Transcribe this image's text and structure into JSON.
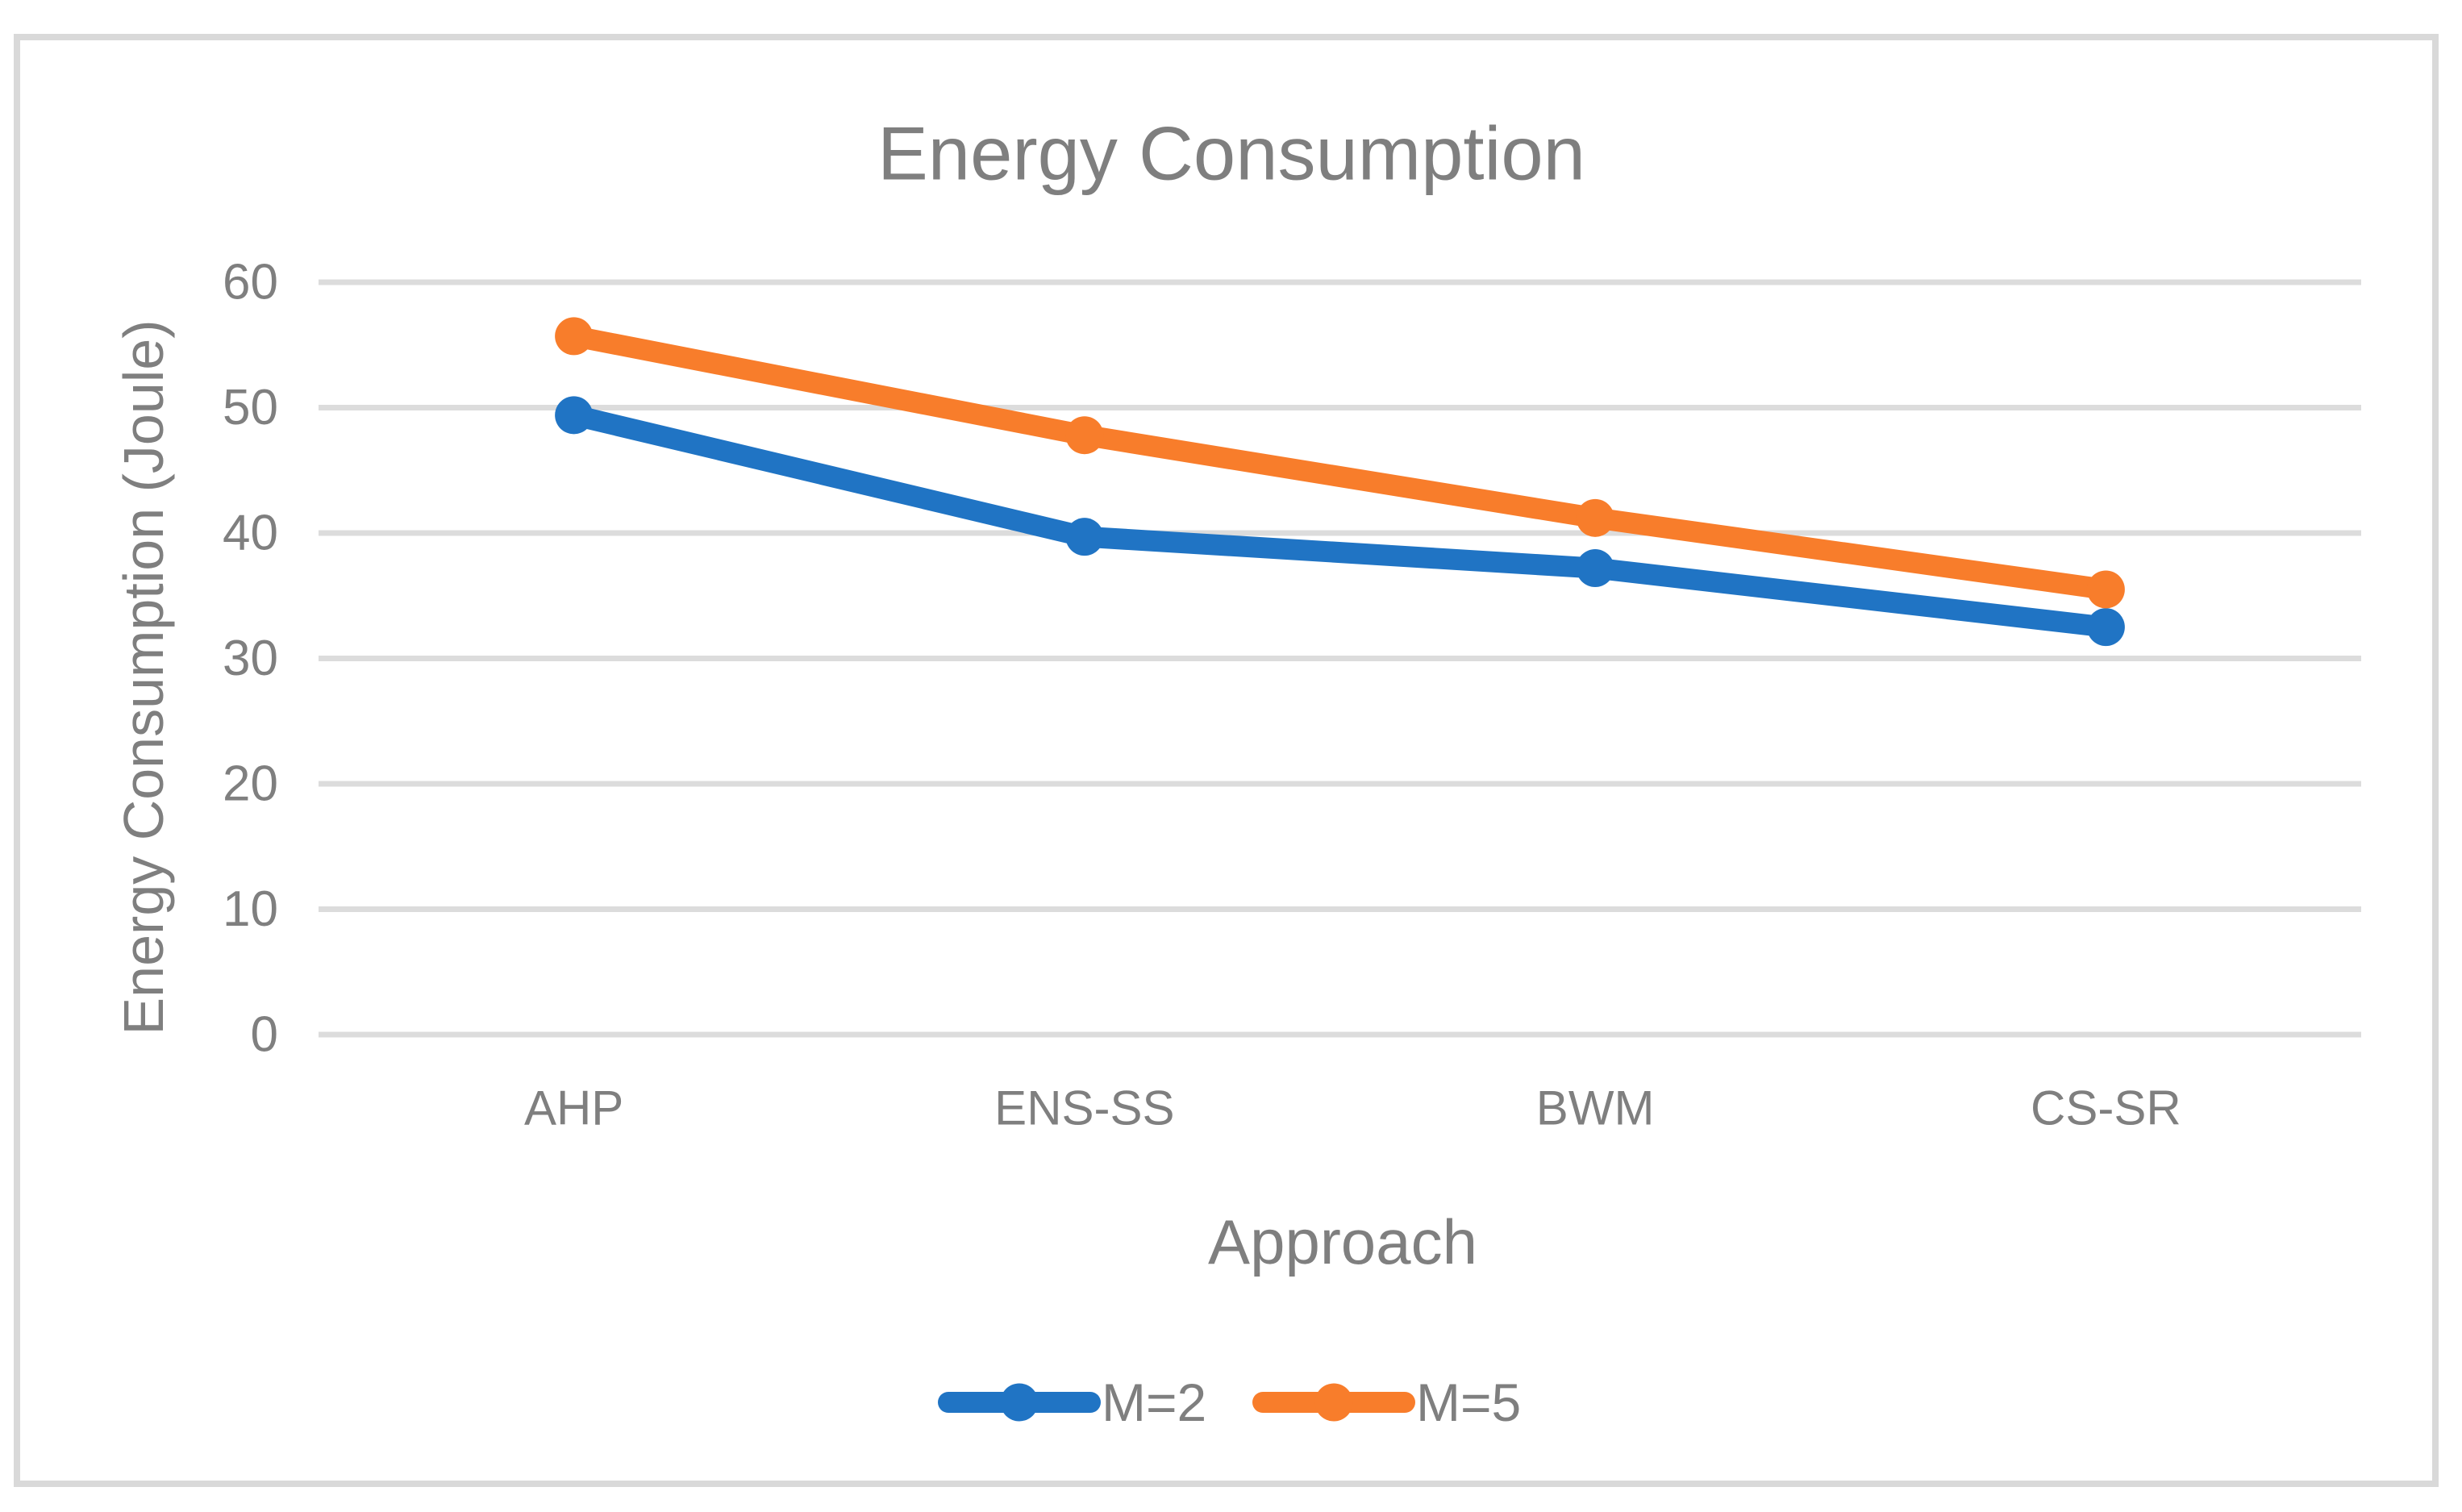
{
  "chart_data": {
    "type": "line",
    "title": "Energy Consumption",
    "xlabel": "Approach",
    "ylabel": "Energy Consumption (Joule)",
    "categories": [
      "AHP",
      "ENS-SS",
      "BWM",
      "CS-SR"
    ],
    "series": [
      {
        "name": "M=2",
        "color": "#2074C4",
        "values": [
          49.4,
          39.7,
          37.2,
          32.5
        ]
      },
      {
        "name": "M=5",
        "color": "#F87D2B",
        "values": [
          55.7,
          47.8,
          41.2,
          35.5
        ]
      }
    ],
    "ylim": [
      0,
      60
    ],
    "yticks": [
      0,
      10,
      20,
      30,
      40,
      50,
      60
    ],
    "grid": "horizontal-only",
    "gridline_color": "#DCDCDC",
    "text_color": "#7F7F7F",
    "border_color": "#D9D9D9",
    "legend_position": "bottom-center",
    "marker": "circle"
  }
}
